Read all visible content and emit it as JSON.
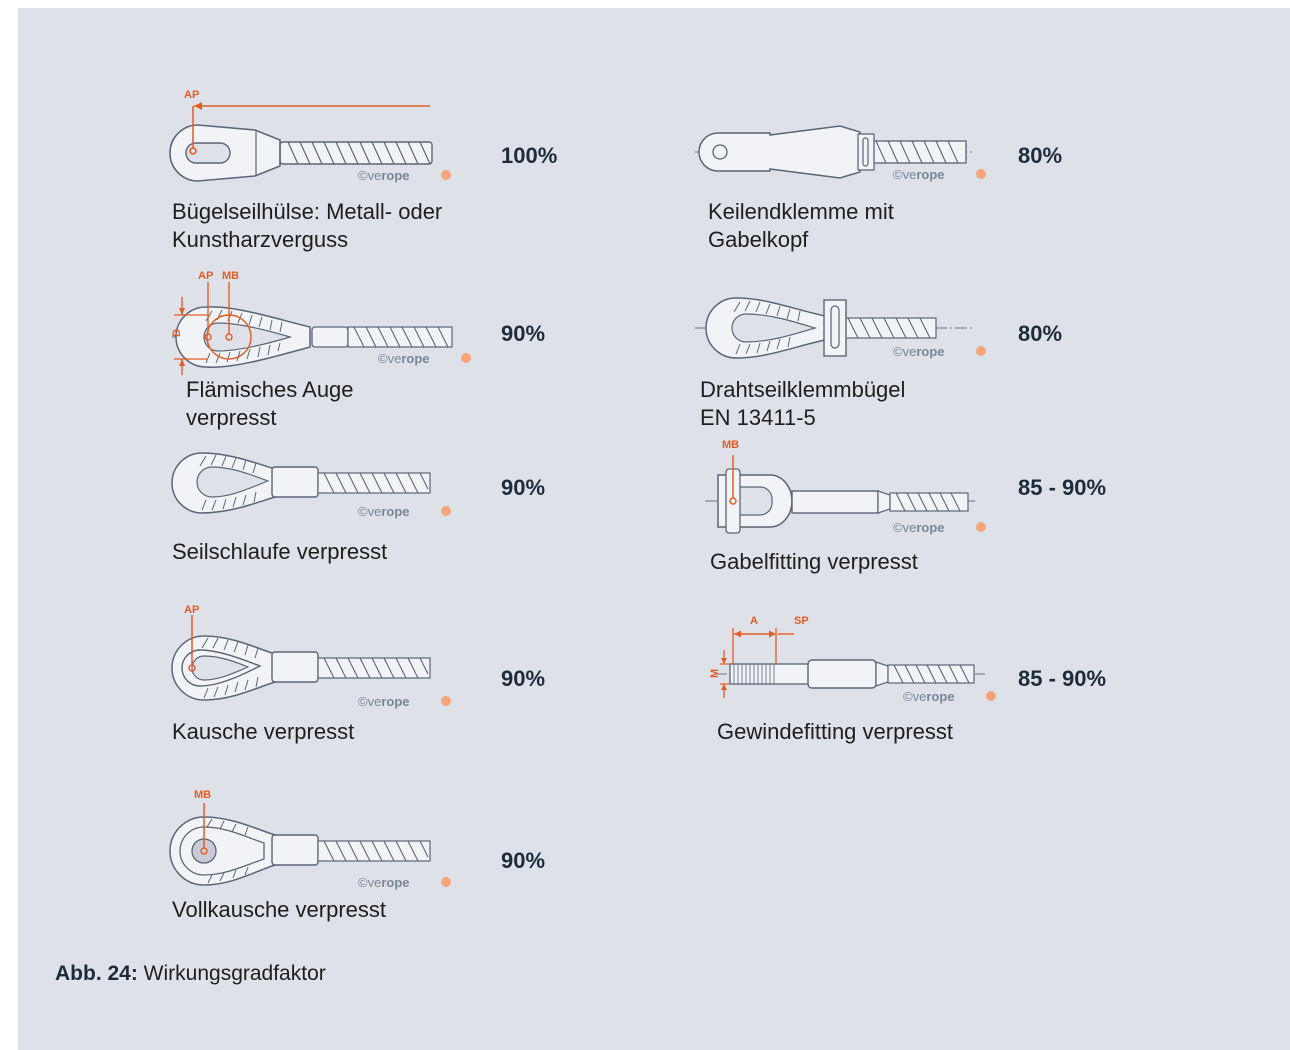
{
  "page": {
    "background": "#dfe1e9",
    "accent": "#e35d25",
    "text_dark": "#1d2c3a"
  },
  "watermark": {
    "copy_prefix": "©ve",
    "copy_brand": "rope"
  },
  "items": [
    {
      "label": "Bügelseilhülse: Metall- oder\nKunstharzverguss",
      "factor": "100%",
      "markers": [
        "AP"
      ],
      "icon": "socket-fitting-icon"
    },
    {
      "label": "Flämisches Auge\nverpresst",
      "factor": "90%",
      "markers": [
        "AP",
        "MB",
        "D"
      ],
      "icon": "flemish-eye-icon"
    },
    {
      "label": "Seilschlaufe verpresst",
      "factor": "90%",
      "markers": [],
      "icon": "rope-loop-icon"
    },
    {
      "label": "Kausche verpresst",
      "factor": "90%",
      "markers": [
        "AP"
      ],
      "icon": "thimble-icon"
    },
    {
      "label": "Vollkausche verpresst",
      "factor": "90%",
      "markers": [
        "MB"
      ],
      "icon": "solid-thimble-icon"
    },
    {
      "label": "Keilendklemme mit\nGabelkopf",
      "factor": "80%",
      "markers": [],
      "icon": "wedge-clamp-icon"
    },
    {
      "label": "Drahtseilklemmbügel\nEN 13411-5",
      "factor": "80%",
      "markers": [],
      "icon": "wire-rope-clip-icon"
    },
    {
      "label": "Gabelfitting verpresst",
      "factor": "85 - 90%",
      "markers": [
        "MB"
      ],
      "icon": "fork-fitting-icon"
    },
    {
      "label": "Gewindefitting verpresst",
      "factor": "85 - 90%",
      "markers": [
        "A",
        "SP",
        "M"
      ],
      "icon": "threaded-fitting-icon"
    }
  ],
  "caption": {
    "prefix": "Abb. 24:",
    "text": " Wirkungsgradfaktor"
  }
}
